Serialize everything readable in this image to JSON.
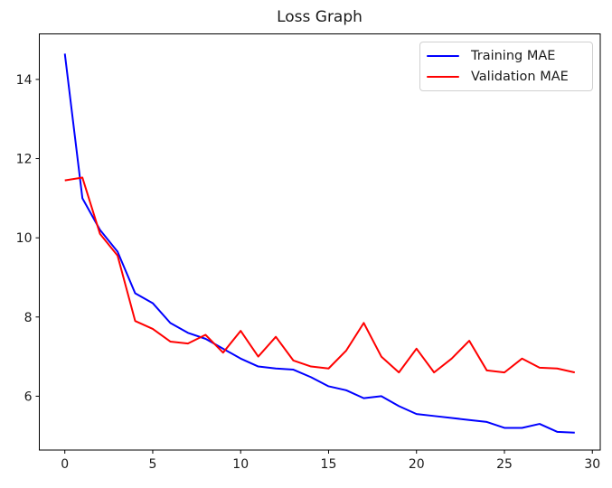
{
  "title": "Loss Graph",
  "colors": {
    "training": "#0000ff",
    "validation": "#ff0000",
    "axis": "#000000",
    "text": "#1a1a1a",
    "legend_border": "#d0d0d0",
    "background": "#ffffff"
  },
  "legend": {
    "items": [
      {
        "label": "Training MAE",
        "color": "#0000ff"
      },
      {
        "label": "Validation MAE",
        "color": "#ff0000"
      }
    ],
    "position": "upper right"
  },
  "chart_data": {
    "type": "line",
    "title": "Loss Graph",
    "xlabel": "",
    "ylabel": "",
    "x": [
      0,
      1,
      2,
      3,
      4,
      5,
      6,
      7,
      8,
      9,
      10,
      11,
      12,
      13,
      14,
      15,
      16,
      17,
      18,
      19,
      20,
      21,
      22,
      23,
      24,
      25,
      26,
      27,
      28,
      29
    ],
    "series": [
      {
        "name": "Training MAE",
        "color": "#0000ff",
        "values": [
          14.65,
          11.0,
          10.2,
          9.65,
          8.6,
          8.35,
          7.85,
          7.6,
          7.45,
          7.2,
          6.95,
          6.75,
          6.7,
          6.67,
          6.48,
          6.25,
          6.15,
          5.95,
          6.0,
          5.75,
          5.55,
          5.5,
          5.45,
          5.4,
          5.35,
          5.2,
          5.2,
          5.3,
          5.1,
          5.08
        ]
      },
      {
        "name": "Validation MAE",
        "color": "#ff0000",
        "values": [
          11.45,
          11.52,
          10.1,
          9.55,
          7.9,
          7.7,
          7.38,
          7.33,
          7.55,
          7.1,
          7.65,
          7.0,
          7.5,
          6.9,
          6.75,
          6.7,
          7.15,
          7.85,
          7.0,
          6.6,
          7.2,
          6.6,
          6.95,
          7.4,
          6.65,
          6.6,
          6.95,
          6.72,
          6.7,
          6.6
        ]
      }
    ],
    "xlim": [
      -1.45,
      30.45
    ],
    "ylim": [
      4.64,
      15.15
    ],
    "xticks": [
      0,
      5,
      10,
      15,
      20,
      25,
      30
    ],
    "yticks": [
      6,
      8,
      10,
      12,
      14
    ],
    "grid": false,
    "legend_position": "upper right"
  }
}
